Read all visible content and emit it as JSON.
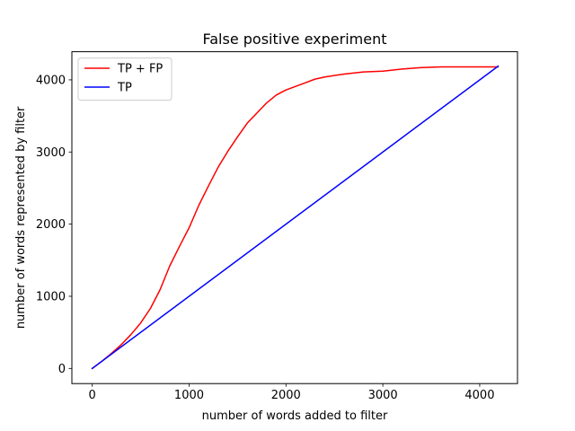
{
  "chart_data": {
    "type": "line",
    "title": "False positive experiment",
    "xlabel": "number of words added to filter",
    "ylabel": "number of words represented by filter",
    "xlim": [
      -210,
      4390
    ],
    "ylim": [
      -210,
      4390
    ],
    "xticks": [
      0,
      1000,
      2000,
      3000,
      4000
    ],
    "yticks": [
      0,
      1000,
      2000,
      3000,
      4000
    ],
    "grid": false,
    "legend_position": "top-left",
    "series": [
      {
        "name": "TP + FP",
        "color": "#ff0000",
        "x": [
          0,
          100,
          200,
          300,
          400,
          500,
          600,
          700,
          800,
          900,
          1000,
          1100,
          1200,
          1300,
          1400,
          1500,
          1600,
          1700,
          1800,
          1900,
          2000,
          2100,
          2200,
          2300,
          2400,
          2600,
          2800,
          3000,
          3200,
          3400,
          3600,
          3800,
          4000,
          4190
        ],
        "y": [
          0,
          100,
          210,
          330,
          470,
          630,
          830,
          1090,
          1420,
          1690,
          1950,
          2260,
          2530,
          2790,
          3010,
          3210,
          3400,
          3540,
          3680,
          3790,
          3860,
          3910,
          3960,
          4010,
          4040,
          4080,
          4110,
          4120,
          4150,
          4170,
          4180,
          4180,
          4180,
          4180
        ]
      },
      {
        "name": "TP",
        "color": "#0000ff",
        "x": [
          0,
          4190
        ],
        "y": [
          0,
          4190
        ]
      }
    ]
  }
}
